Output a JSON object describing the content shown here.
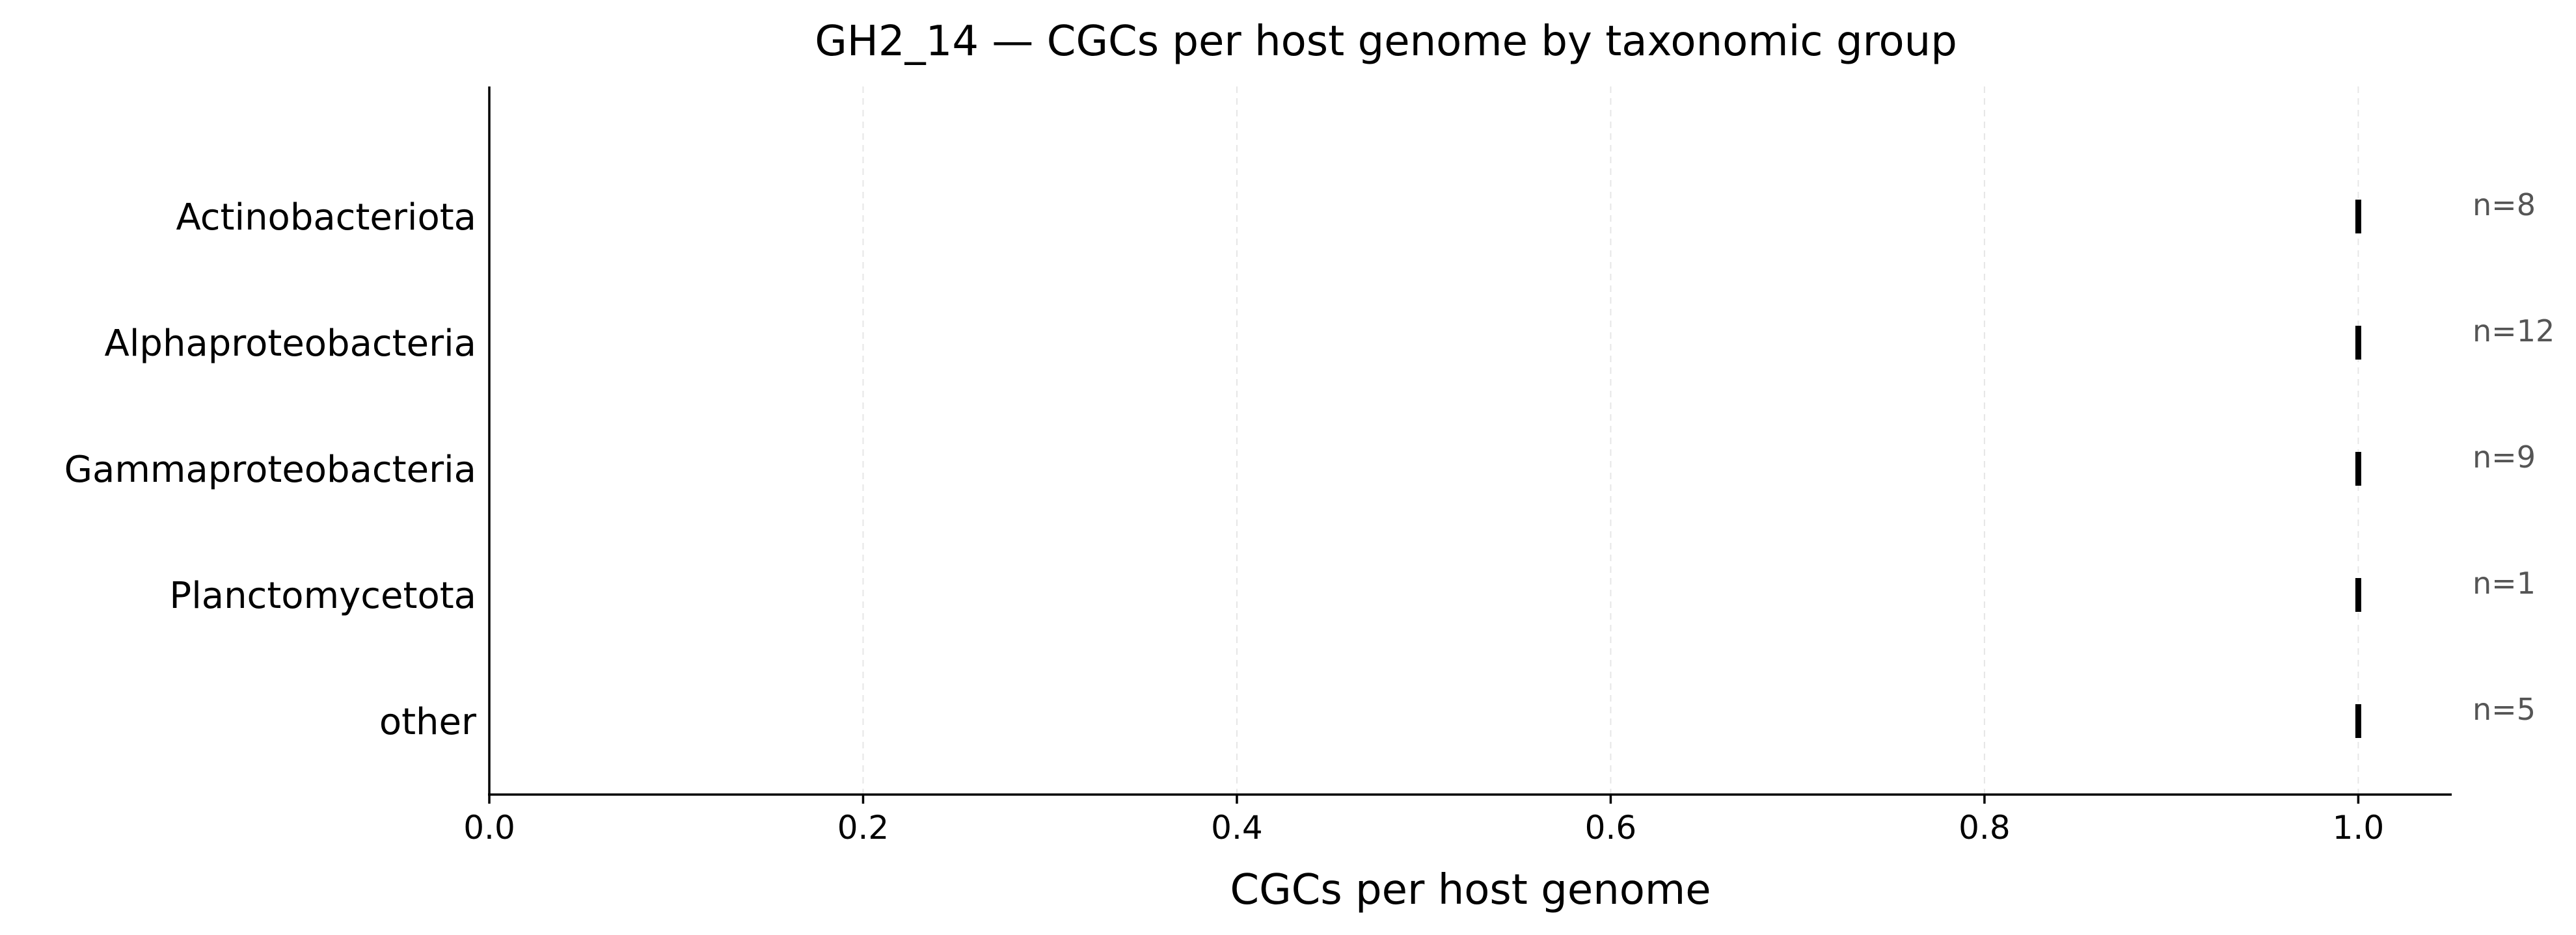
{
  "chart_data": {
    "type": "strip",
    "title": "GH2_14 — CGCs per host genome by taxonomic group",
    "xlabel": "CGCs per host genome",
    "ylabel": "",
    "xlim": [
      0.0,
      1.05
    ],
    "xticks": [
      0.0,
      0.2,
      0.4,
      0.6,
      0.8,
      1.0
    ],
    "xtick_labels": [
      "0.0",
      "0.2",
      "0.4",
      "0.6",
      "0.8",
      "1.0"
    ],
    "grid": "vertical dashed",
    "categories": [
      "Actinobacteriota",
      "Alphaproteobacteria",
      "Gammaproteobacteria",
      "Planctomycetota",
      "other"
    ],
    "values": [
      1.0,
      1.0,
      1.0,
      1.0,
      1.0
    ],
    "counts": [
      "n=8",
      "n=12",
      "n=9",
      "n=1",
      "n=5"
    ],
    "colors": {
      "mark": "#000000",
      "count_label": "#555555",
      "grid": "#e6e6e6"
    }
  }
}
